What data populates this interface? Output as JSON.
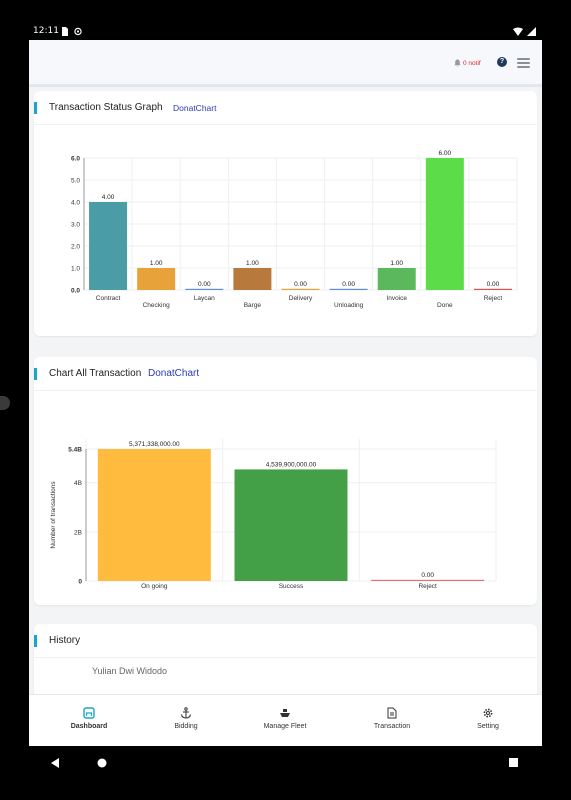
{
  "status_bar": {
    "time": "12:11"
  },
  "header": {
    "notif_label": "0 notif",
    "help_label": "?"
  },
  "colors": {
    "accent": "#1aa6c8",
    "link": "#2d3bb5",
    "active_nav": "#1aa6c8"
  },
  "status_card": {
    "title": "Transaction Status Graph",
    "subtitle": "DonatChart"
  },
  "all_card": {
    "title": "Chart All Transaction",
    "subtitle": "DonatChart"
  },
  "history_card": {
    "title": "History",
    "entries": [
      {
        "name": "Yulian Dwi Widodo"
      }
    ]
  },
  "chart_data": [
    {
      "type": "bar",
      "categories": [
        "Contract",
        "Checking",
        "Laycan",
        "Barge",
        "Delivery",
        "Unloading",
        "Invoice",
        "Done",
        "Reject"
      ],
      "values": [
        4,
        1,
        0,
        1,
        0,
        0,
        1,
        6,
        0
      ],
      "value_labels": [
        "4.00",
        "1.00",
        "0.00",
        "1.00",
        "0.00",
        "0.00",
        "1.00",
        "6.00",
        "0.00"
      ],
      "colors": [
        "#4a9ca6",
        "#e8a23a",
        "#5b8fd6",
        "#b87a3c",
        "#e8a23a",
        "#5b8fd6",
        "#5cb85c",
        "#5ddc4a",
        "#d9534f"
      ],
      "yticks": [
        "6.0",
        "5.0",
        "4.0",
        "3.0",
        "2.0",
        "1.0",
        "0.0"
      ],
      "ylim": [
        0,
        6
      ],
      "xlabel": "",
      "ylabel": "",
      "grid": true
    },
    {
      "type": "bar",
      "categories": [
        "On going",
        "Success",
        "Reject"
      ],
      "values": [
        5371338000,
        4539900000,
        0
      ],
      "value_labels": [
        "5,371,338,000.00",
        "4,539,900,000.00",
        "0.00"
      ],
      "colors": [
        "#ffbb3d",
        "#43a047",
        "#e57373"
      ],
      "yticks": [
        "5.4B",
        "4B",
        "2B",
        "0"
      ],
      "ytick_values": [
        5371338000,
        4000000000,
        2000000000,
        0
      ],
      "ylim": [
        0,
        5371338000
      ],
      "xlabel": "",
      "ylabel": "Number of transactions",
      "grid": true
    }
  ],
  "bottom_nav": [
    {
      "label": "Dashboard",
      "icon": "home-icon",
      "active": true
    },
    {
      "label": "Bidding",
      "icon": "anchor-icon",
      "active": false
    },
    {
      "label": "Manage Fleet",
      "icon": "ship-icon",
      "active": false
    },
    {
      "label": "Transaction",
      "icon": "document-icon",
      "active": false
    },
    {
      "label": "Setting",
      "icon": "gear-icon",
      "active": false
    }
  ]
}
